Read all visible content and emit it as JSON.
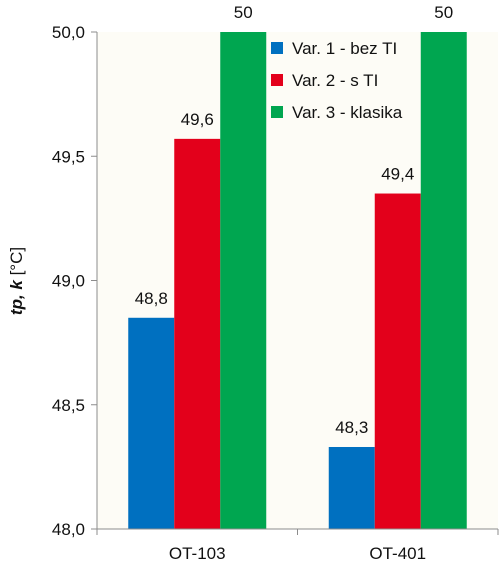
{
  "chart_data": {
    "type": "bar",
    "categories": [
      "OT-103",
      "OT-401"
    ],
    "series": [
      {
        "name": "Var. 1 - bez TI",
        "color": "#0070c0",
        "values": [
          48.85,
          48.33
        ],
        "labels": [
          "48,8",
          "48,3"
        ]
      },
      {
        "name": "Var. 2 - s TI",
        "color": "#e3001b",
        "values": [
          49.57,
          49.35
        ],
        "labels": [
          "49,6",
          "49,4"
        ]
      },
      {
        "name": "Var. 3 - klasika",
        "color": "#00a650",
        "values": [
          50.0,
          50.0
        ],
        "labels": [
          "50",
          "50"
        ]
      }
    ],
    "ylim": [
      48.0,
      50.0
    ],
    "yticks": [
      "48,0",
      "48,5",
      "49,0",
      "49,5",
      "50,0"
    ],
    "ylabel": {
      "italic_bold": "tp, k",
      "rest": " [°C]"
    },
    "legend_position": "top-right",
    "plot_background": "#fdfcf6",
    "grid": false
  }
}
